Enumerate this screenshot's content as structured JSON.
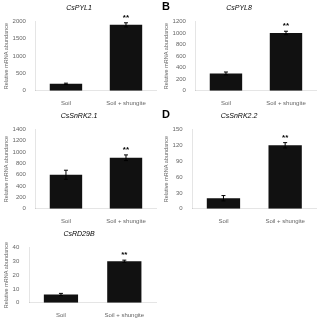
{
  "chart_data": [
    {
      "type": "bar",
      "title": "CsPYL1",
      "ylabel": "Relative mRNA abundance",
      "categories": [
        "Soil",
        "Soil + shungite"
      ],
      "values": [
        200,
        1900
      ],
      "errors": [
        20,
        60
      ],
      "color": "#111111",
      "ylim": [
        0,
        2000
      ],
      "yticks": [
        0,
        500,
        1000,
        1500,
        2000
      ],
      "grid": false,
      "annotations": [
        {
          "text": "**",
          "x": "Soil + shungite"
        }
      ]
    },
    {
      "type": "bar",
      "title": "CsPYL8",
      "ylabel": "Relative mRNA abundance",
      "categories": [
        "Soil",
        "Soil + shungite"
      ],
      "values": [
        300,
        1000
      ],
      "errors": [
        25,
        30
      ],
      "color": "#111111",
      "ylim": [
        0,
        1200
      ],
      "yticks": [
        0,
        200,
        400,
        600,
        800,
        1000,
        1200
      ],
      "grid": false,
      "annotations": [
        {
          "text": "B"
        },
        {
          "text": "**",
          "x": "Soil + shungite"
        }
      ]
    },
    {
      "type": "bar",
      "title": "CsSnRK2.1",
      "ylabel": "Relative mRNA abundance",
      "categories": [
        "Soil",
        "Soil + shungite"
      ],
      "values": [
        600,
        900
      ],
      "errors": [
        80,
        50
      ],
      "color": "#111111",
      "ylim": [
        0,
        1400
      ],
      "yticks": [
        0,
        200,
        400,
        600,
        800,
        1000,
        1200,
        1400
      ],
      "grid": false,
      "annotations": [
        {
          "text": "**",
          "x": "Soil + shungite"
        }
      ]
    },
    {
      "type": "bar",
      "title": "CsSnRK2.2",
      "ylabel": "Relative mRNA abundance",
      "categories": [
        "Soil",
        "Soil + shungite"
      ],
      "values": [
        20,
        120
      ],
      "errors": [
        5,
        5
      ],
      "color": "#111111",
      "ylim": [
        0,
        150
      ],
      "yticks": [
        0,
        30,
        60,
        90,
        120,
        150
      ],
      "grid": false,
      "annotations": [
        {
          "text": "D"
        },
        {
          "text": "**",
          "x": "Soil + shungite"
        }
      ]
    },
    {
      "type": "bar",
      "title": "CsRD29B",
      "ylabel": "Relative mRNA abundance",
      "categories": [
        "Soil",
        "Soil + shungite"
      ],
      "values": [
        6,
        30
      ],
      "errors": [
        0.8,
        0.8
      ],
      "color": "#111111",
      "ylim": [
        0,
        40
      ],
      "yticks": [
        0,
        10,
        20,
        30,
        40
      ],
      "grid": false,
      "annotations": [
        {
          "text": "**",
          "x": "Soil + shungite"
        }
      ]
    }
  ]
}
